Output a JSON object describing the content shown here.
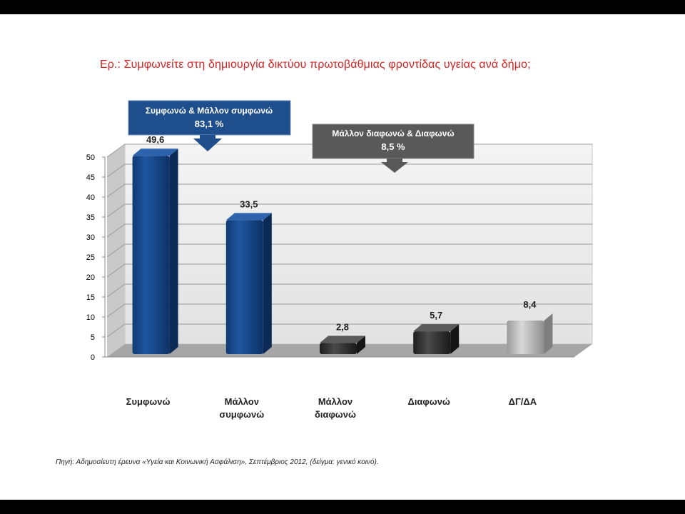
{
  "question": "Ερ.: Συμφωνείτε στη δημιουργία δικτύου πρωτοβάθμιας φροντίδας υγείας ανά δήμο;",
  "callouts": {
    "agree": {
      "line1": "Συμφωνώ  & Μάλλον συμφωνώ",
      "line2": "83,1 %",
      "color": "#1f4e8c"
    },
    "disagree": {
      "line1": "Μάλλον διαφωνώ & Διαφωνώ",
      "line2": "8,5 %",
      "color": "#595959"
    }
  },
  "source": "Πηγή: Αδημοσίευτη έρευνα «Υγεία και Κοινωνική Ασφάλιση», Σεπτέμβριος 2012, (δείγμα: γενικό κοινό).",
  "chart_data": {
    "type": "bar",
    "categories": [
      [
        "Συμφωνώ"
      ],
      [
        "Μάλλον",
        "συμφωνώ"
      ],
      [
        "Μάλλον",
        "διαφωνώ"
      ],
      [
        "Διαφωνώ"
      ],
      [
        "ΔΓ/ΔΑ"
      ]
    ],
    "values": [
      49.6,
      33.5,
      2.8,
      5.7,
      8.4
    ],
    "data_labels": [
      "49,6",
      "33,5",
      "2,8",
      "5,7",
      "8,4"
    ],
    "colors": [
      "#1a4a8a",
      "#1a4a8a",
      "#333333",
      "#333333",
      "#b8b8b8"
    ],
    "ylim": [
      0,
      50
    ],
    "yticks": [
      0,
      5,
      10,
      15,
      20,
      25,
      30,
      35,
      40,
      45,
      50
    ],
    "grid": true
  }
}
